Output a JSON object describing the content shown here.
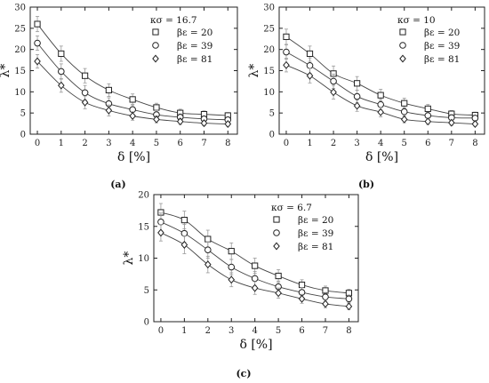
{
  "chart_data": [
    {
      "type": "scatter",
      "panel_label": "(a)",
      "xlabel": "δ [%]",
      "ylabel": "λ*",
      "xlim": [
        -0.3,
        8.4
      ],
      "ylim": [
        0,
        30
      ],
      "x_ticks": [
        0,
        1,
        2,
        3,
        4,
        5,
        6,
        7,
        8
      ],
      "y_ticks": [
        0,
        5,
        10,
        15,
        20,
        25,
        30
      ],
      "legend_title": "κσ = 16.7",
      "legend_position": "top-right",
      "x": [
        0,
        1,
        2,
        3,
        4,
        5,
        6,
        7,
        8
      ],
      "series": [
        {
          "name": "βε = 20",
          "marker": "square",
          "values": [
            26,
            19,
            13.8,
            10.4,
            8.2,
            6.3,
            5.0,
            4.7,
            4.4
          ],
          "errors": [
            1.8,
            1.8,
            1.7,
            1.5,
            1.3,
            1.0,
            0.9,
            0.8,
            0.7
          ]
        },
        {
          "name": "βε = 39",
          "marker": "circle",
          "values": [
            21.5,
            14.8,
            9.8,
            7.2,
            5.8,
            4.6,
            4.0,
            3.6,
            3.4
          ],
          "errors": [
            1.7,
            1.8,
            1.7,
            1.4,
            1.2,
            1.0,
            0.8,
            0.7,
            0.6
          ]
        },
        {
          "name": "βε = 81",
          "marker": "diamond",
          "values": [
            17.2,
            11.5,
            7.5,
            5.6,
            4.3,
            3.5,
            3.0,
            2.6,
            2.4
          ],
          "errors": [
            1.6,
            1.6,
            1.5,
            1.3,
            1.0,
            0.8,
            0.7,
            0.6,
            0.5
          ]
        }
      ]
    },
    {
      "type": "scatter",
      "panel_label": "(b)",
      "xlabel": "δ [%]",
      "ylabel": "λ*",
      "xlim": [
        -0.3,
        8.4
      ],
      "ylim": [
        0,
        30
      ],
      "x_ticks": [
        0,
        1,
        2,
        3,
        4,
        5,
        6,
        7,
        8
      ],
      "y_ticks": [
        0,
        5,
        10,
        15,
        20,
        25,
        30
      ],
      "legend_title": "κσ = 10",
      "legend_position": "top-right",
      "x": [
        0,
        1,
        2,
        3,
        4,
        5,
        6,
        7,
        8
      ],
      "series": [
        {
          "name": "βε = 20",
          "marker": "square",
          "values": [
            23,
            19,
            14.3,
            12.0,
            9.2,
            7.3,
            6.0,
            4.8,
            4.5
          ],
          "errors": [
            1.8,
            1.8,
            1.8,
            1.6,
            1.4,
            1.2,
            1.0,
            0.8,
            0.7
          ]
        },
        {
          "name": "βε = 39",
          "marker": "circle",
          "values": [
            19.4,
            16.2,
            12.5,
            8.9,
            7.0,
            5.3,
            4.4,
            3.9,
            3.8
          ],
          "errors": [
            1.7,
            1.8,
            1.7,
            1.5,
            1.2,
            1.0,
            0.8,
            0.7,
            0.6
          ]
        },
        {
          "name": "βε = 81",
          "marker": "diamond",
          "values": [
            16.3,
            13.8,
            9.9,
            6.7,
            5.2,
            3.5,
            3.0,
            2.7,
            2.4
          ],
          "errors": [
            1.6,
            1.7,
            1.6,
            1.3,
            1.1,
            0.8,
            0.7,
            0.6,
            0.5
          ]
        }
      ]
    },
    {
      "type": "scatter",
      "panel_label": "(c)",
      "xlabel": "δ [%]",
      "ylabel": "λ*",
      "xlim": [
        -0.3,
        8.4
      ],
      "ylim": [
        0,
        20
      ],
      "x_ticks": [
        0,
        1,
        2,
        3,
        4,
        5,
        6,
        7,
        8
      ],
      "y_ticks": [
        0,
        5,
        10,
        15,
        20
      ],
      "legend_title": "κσ = 6.7",
      "legend_position": "top-right",
      "x": [
        0,
        1,
        2,
        3,
        4,
        5,
        6,
        7,
        8
      ],
      "series": [
        {
          "name": "βε = 20",
          "marker": "square",
          "values": [
            17.2,
            16.0,
            13.0,
            11.1,
            8.8,
            7.2,
            5.8,
            4.9,
            4.5
          ],
          "errors": [
            1.4,
            1.4,
            1.4,
            1.3,
            1.2,
            1.0,
            0.8,
            0.7,
            0.6
          ]
        },
        {
          "name": "βε = 39",
          "marker": "circle",
          "values": [
            15.7,
            13.9,
            11.3,
            8.6,
            6.8,
            5.5,
            4.6,
            3.9,
            3.6
          ],
          "errors": [
            1.4,
            1.4,
            1.3,
            1.2,
            1.1,
            0.9,
            0.8,
            0.7,
            0.6
          ]
        },
        {
          "name": "βε = 81",
          "marker": "diamond",
          "values": [
            14.0,
            12.1,
            9.0,
            6.6,
            5.3,
            4.5,
            3.6,
            2.8,
            2.4
          ],
          "errors": [
            1.3,
            1.4,
            1.3,
            1.1,
            1.0,
            0.8,
            0.7,
            0.6,
            0.5
          ]
        }
      ]
    }
  ]
}
